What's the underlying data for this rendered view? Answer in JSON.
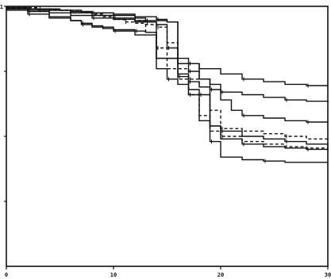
{
  "chart_data": {
    "type": "line",
    "step": "post",
    "title": "",
    "xlabel": "",
    "ylabel": "",
    "xlim": [
      0,
      30
    ],
    "ylim": [
      0,
      1.0
    ],
    "x_ticks": [
      "0",
      "10",
      "20",
      "30"
    ],
    "x_tick_values": [
      0,
      10,
      20,
      30
    ],
    "y_ticks": [
      "1",
      "",
      "",
      ""
    ],
    "y_tick_values": [
      1.0,
      0.75,
      0.5,
      0.25
    ],
    "grid": false,
    "line_color": "#111111",
    "series": [
      {
        "line_style": "solid",
        "x": [
          0,
          2,
          5,
          7,
          8,
          10,
          12,
          14,
          15,
          16,
          17,
          18,
          20,
          22,
          24,
          26,
          28,
          30
        ],
        "y": [
          0.995,
          0.99,
          0.985,
          0.98,
          0.975,
          0.97,
          0.96,
          0.95,
          0.94,
          0.8,
          0.78,
          0.76,
          0.74,
          0.72,
          0.71,
          0.7,
          0.695,
          0.69
        ]
      },
      {
        "line_style": "solid",
        "x": [
          0,
          2,
          4,
          6,
          8,
          10,
          12,
          13,
          15,
          16,
          17,
          18,
          19,
          20,
          22,
          24,
          26,
          28,
          30
        ],
        "y": [
          0.995,
          0.99,
          0.985,
          0.98,
          0.975,
          0.965,
          0.955,
          0.945,
          0.94,
          0.78,
          0.75,
          0.72,
          0.7,
          0.67,
          0.66,
          0.65,
          0.64,
          0.635,
          0.63
        ]
      },
      {
        "line_style": "solid",
        "x": [
          0,
          3,
          6,
          8,
          10,
          12,
          14,
          15,
          16,
          18,
          19,
          20,
          21,
          22,
          24,
          26,
          28,
          30
        ],
        "y": [
          0.99,
          0.985,
          0.975,
          0.965,
          0.955,
          0.94,
          0.93,
          0.84,
          0.78,
          0.72,
          0.68,
          0.64,
          0.6,
          0.58,
          0.57,
          0.56,
          0.555,
          0.55
        ]
      },
      {
        "line_style": "dashed",
        "x": [
          0,
          3,
          5,
          7,
          8,
          9,
          10,
          11,
          12,
          13,
          14,
          15,
          16,
          17,
          18,
          19,
          20,
          22,
          24,
          26,
          28,
          30
        ],
        "y": [
          0.995,
          0.99,
          0.985,
          0.98,
          0.97,
          0.96,
          0.95,
          0.94,
          0.935,
          0.93,
          0.92,
          0.86,
          0.76,
          0.72,
          0.69,
          0.6,
          0.53,
          0.52,
          0.51,
          0.5,
          0.49,
          0.48
        ]
      },
      {
        "line_style": "solid",
        "x": [
          0,
          2,
          4,
          6,
          8,
          10,
          12,
          13,
          14,
          16,
          17,
          18,
          19,
          20,
          22,
          24,
          26,
          28,
          30
        ],
        "y": [
          0.99,
          0.985,
          0.975,
          0.965,
          0.955,
          0.95,
          0.945,
          0.94,
          0.8,
          0.74,
          0.71,
          0.69,
          0.54,
          0.52,
          0.5,
          0.49,
          0.48,
          0.47,
          0.46
        ]
      },
      {
        "line_style": "solid",
        "x": [
          0,
          2,
          4,
          6,
          7,
          8,
          10,
          12,
          13,
          14,
          15,
          16,
          17,
          18,
          19,
          20,
          22,
          24,
          26,
          28,
          30
        ],
        "y": [
          0.985,
          0.97,
          0.955,
          0.945,
          0.93,
          0.92,
          0.91,
          0.905,
          0.9,
          0.76,
          0.72,
          0.7,
          0.68,
          0.66,
          0.54,
          0.49,
          0.47,
          0.46,
          0.455,
          0.45,
          0.445
        ]
      },
      {
        "line_style": "dashed",
        "x": [
          0,
          3,
          6,
          8,
          10,
          12,
          13,
          14,
          15,
          16,
          17,
          18,
          19,
          20,
          22,
          24,
          26,
          28,
          30
        ],
        "y": [
          0.995,
          0.985,
          0.975,
          0.965,
          0.955,
          0.945,
          0.9,
          0.84,
          0.76,
          0.72,
          0.66,
          0.58,
          0.52,
          0.5,
          0.48,
          0.47,
          0.46,
          0.455,
          0.45
        ]
      },
      {
        "line_style": "solid",
        "x": [
          0,
          2,
          4,
          6,
          7,
          8,
          9,
          10,
          12,
          14,
          16,
          17,
          18,
          19,
          20,
          22,
          24,
          26,
          28,
          30
        ],
        "y": [
          0.99,
          0.98,
          0.96,
          0.945,
          0.935,
          0.925,
          0.915,
          0.905,
          0.89,
          0.8,
          0.73,
          0.66,
          0.56,
          0.48,
          0.42,
          0.41,
          0.405,
          0.4,
          0.4,
          0.4
        ]
      }
    ]
  }
}
